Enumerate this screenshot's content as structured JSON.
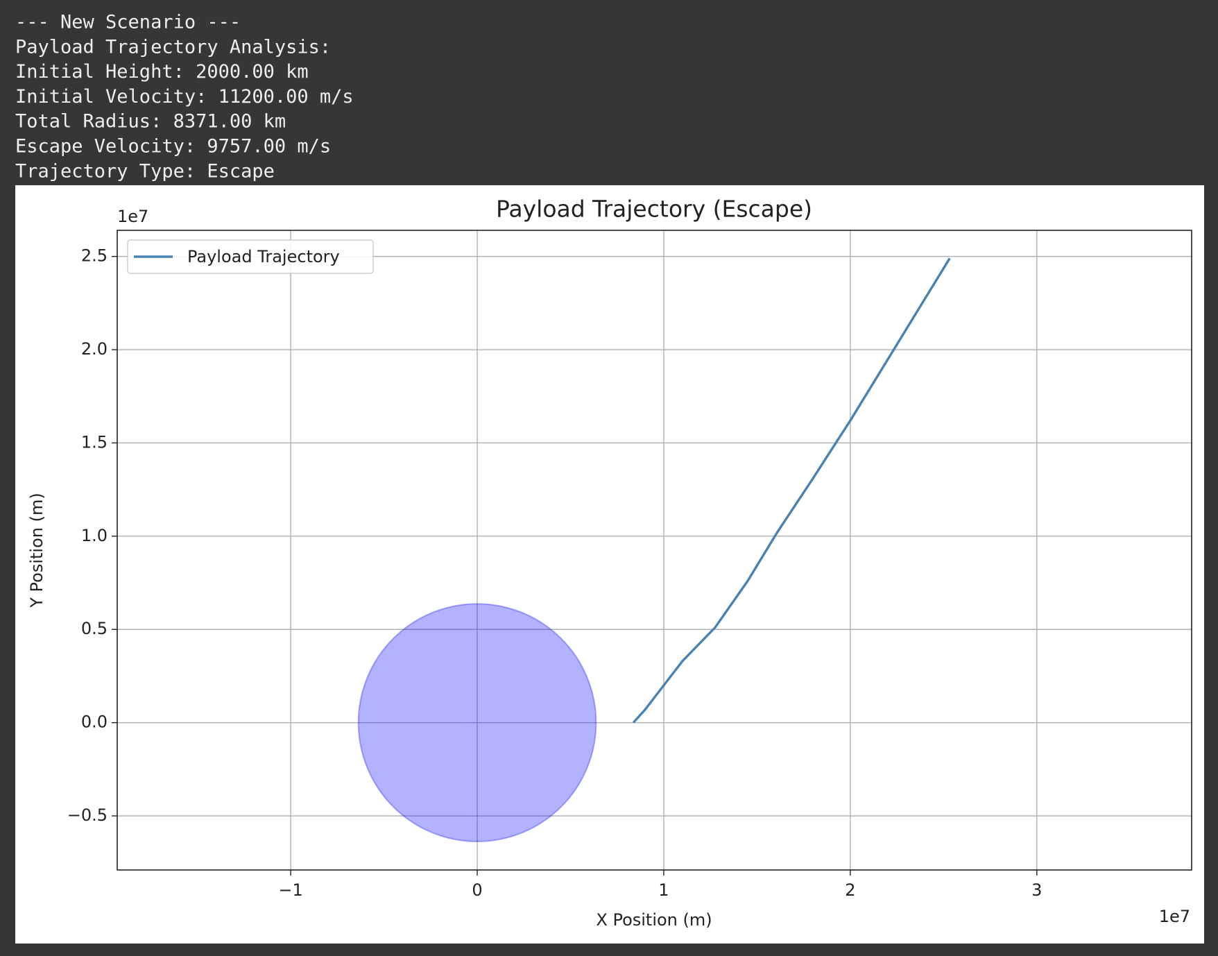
{
  "console": {
    "lines": [
      "--- New Scenario ---",
      "Payload Trajectory Analysis:",
      "Initial Height: 2000.00 km",
      "Initial Velocity: 11200.00 m/s",
      "Total Radius: 8371.00 km",
      "Escape Velocity: 9757.00 m/s",
      "Trajectory Type: Escape"
    ]
  },
  "chart_data": {
    "type": "line",
    "title": "Payload Trajectory (Escape)",
    "x_label": "X Position (m)",
    "y_label": "Y Position (m)",
    "x_offset_label": "1e7",
    "y_offset_label": "1e7",
    "xlim": [
      -1.93,
      3.83
    ],
    "ylim": [
      -0.79,
      2.64
    ],
    "xticks": [
      {
        "value": -1,
        "label": "−1"
      },
      0,
      1,
      2,
      3
    ],
    "yticks": [
      {
        "value": -0.5,
        "label": "−0.5"
      },
      {
        "value": 0,
        "label": "0.0"
      },
      0.5,
      {
        "value": 1,
        "label": "1.0"
      },
      1.5,
      {
        "value": 2,
        "label": "2.0"
      },
      2.5
    ],
    "grid": true,
    "legend": "upper left",
    "planet": {
      "x": 0,
      "y": 0,
      "radius": 0.6371,
      "color": "#0000ff"
    },
    "series": [
      {
        "name": "Payload Trajectory",
        "color": "#4682b4",
        "x": [
          0.8371,
          0.9,
          1.0,
          1.1,
          1.275,
          1.45,
          1.608,
          1.8,
          2.0,
          2.233,
          2.533
        ],
        "values": [
          0,
          0.07,
          0.2,
          0.33,
          0.51,
          0.76,
          1.02,
          1.31,
          1.62,
          2.0,
          2.49
        ]
      }
    ]
  }
}
